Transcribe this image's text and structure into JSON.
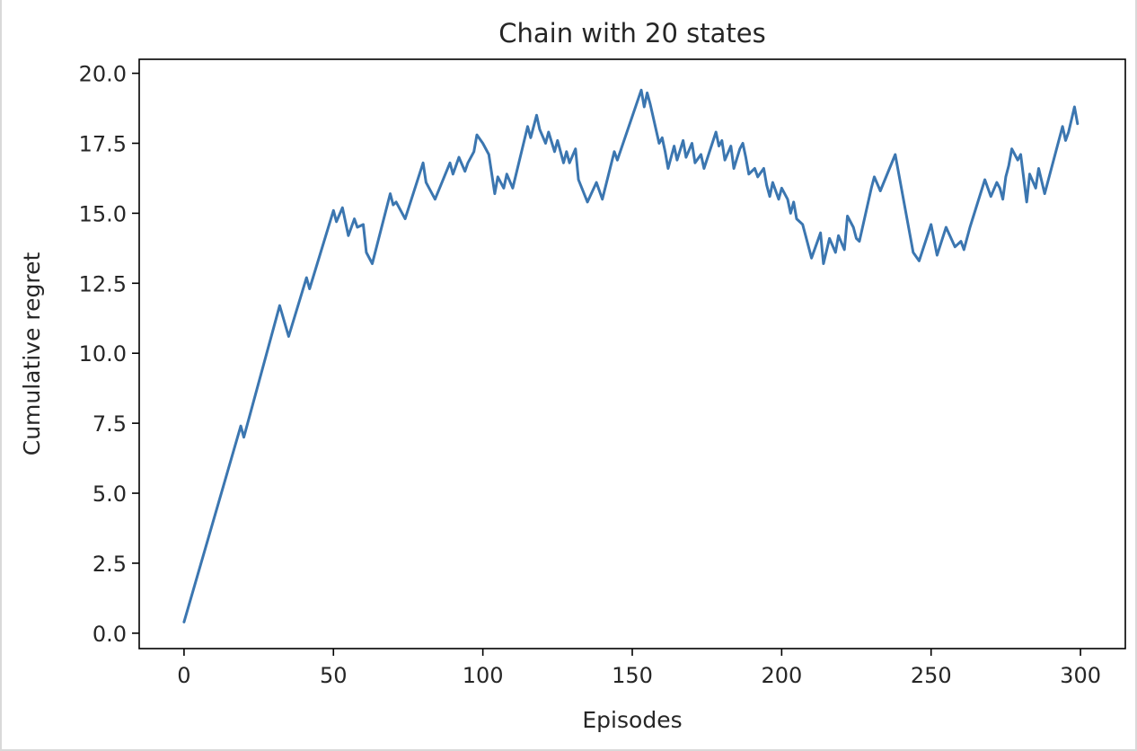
{
  "chart_data": {
    "type": "line",
    "title": "Chain with 20 states",
    "xlabel": "Episodes",
    "ylabel": "Cumulative regret",
    "xlim": [
      -15,
      315
    ],
    "ylim": [
      -0.55,
      20.5
    ],
    "xticks": [
      0,
      50,
      100,
      150,
      200,
      250,
      300
    ],
    "xtick_labels": [
      "0",
      "50",
      "100",
      "150",
      "200",
      "250",
      "300"
    ],
    "yticks": [
      0,
      2.5,
      5,
      7.5,
      10,
      12.5,
      15,
      17.5,
      20
    ],
    "ytick_labels": [
      "0.0",
      "2.5",
      "5.0",
      "7.5",
      "10.0",
      "12.5",
      "15.0",
      "17.5",
      "20.0"
    ],
    "grid": false,
    "line_color": "#3b76b0",
    "x": [
      0,
      19,
      20,
      32,
      35,
      41,
      42,
      50,
      51,
      53,
      55,
      57,
      58,
      60,
      61,
      63,
      69,
      70,
      71,
      74,
      80,
      81,
      84,
      89,
      90,
      92,
      94,
      95,
      97,
      98,
      100,
      102,
      104,
      105,
      107,
      108,
      110,
      115,
      116,
      118,
      119,
      121,
      122,
      124,
      125,
      127,
      128,
      129,
      131,
      132,
      135,
      138,
      140,
      144,
      145,
      153,
      154,
      155,
      156,
      159,
      160,
      161,
      162,
      164,
      165,
      167,
      168,
      170,
      171,
      173,
      174,
      178,
      179,
      180,
      181,
      183,
      184,
      186,
      187,
      188,
      189,
      191,
      192,
      194,
      195,
      196,
      197,
      199,
      200,
      202,
      203,
      204,
      205,
      207,
      208,
      210,
      213,
      214,
      216,
      218,
      219,
      221,
      222,
      224,
      225,
      226,
      230,
      231,
      233,
      238,
      244,
      246,
      250,
      252,
      255,
      258,
      260,
      261,
      263,
      268,
      270,
      272,
      273,
      274,
      275,
      276,
      277,
      279,
      280,
      282,
      283,
      285,
      286,
      288,
      294,
      295,
      296,
      298,
      299
    ],
    "values": [
      0.4,
      7.4,
      7.0,
      11.7,
      10.6,
      12.7,
      12.3,
      15.1,
      14.7,
      15.2,
      14.2,
      14.8,
      14.5,
      14.6,
      13.6,
      13.2,
      15.7,
      15.3,
      15.4,
      14.8,
      16.8,
      16.1,
      15.5,
      16.8,
      16.4,
      17.0,
      16.5,
      16.8,
      17.2,
      17.8,
      17.5,
      17.1,
      15.7,
      16.3,
      15.9,
      16.4,
      15.9,
      18.1,
      17.7,
      18.5,
      18.0,
      17.5,
      17.9,
      17.2,
      17.6,
      16.8,
      17.2,
      16.8,
      17.3,
      16.2,
      15.4,
      16.1,
      15.5,
      17.2,
      16.9,
      19.4,
      18.8,
      19.3,
      18.9,
      17.5,
      17.7,
      17.2,
      16.6,
      17.4,
      16.9,
      17.6,
      17.0,
      17.5,
      16.8,
      17.1,
      16.6,
      17.9,
      17.4,
      17.6,
      16.9,
      17.4,
      16.6,
      17.3,
      17.5,
      17.0,
      16.4,
      16.6,
      16.3,
      16.6,
      16.0,
      15.6,
      16.1,
      15.5,
      15.9,
      15.5,
      15.0,
      15.4,
      14.8,
      14.6,
      14.2,
      13.4,
      14.3,
      13.2,
      14.1,
      13.6,
      14.2,
      13.7,
      14.9,
      14.5,
      14.1,
      14.0,
      15.9,
      16.3,
      15.8,
      17.1,
      13.6,
      13.3,
      14.6,
      13.5,
      14.5,
      13.8,
      14.0,
      13.7,
      14.5,
      16.2,
      15.6,
      16.1,
      15.9,
      15.5,
      16.3,
      16.7,
      17.3,
      16.9,
      17.1,
      15.4,
      16.4,
      15.9,
      16.6,
      15.7,
      18.1,
      17.6,
      17.9,
      18.8,
      18.2
    ]
  }
}
